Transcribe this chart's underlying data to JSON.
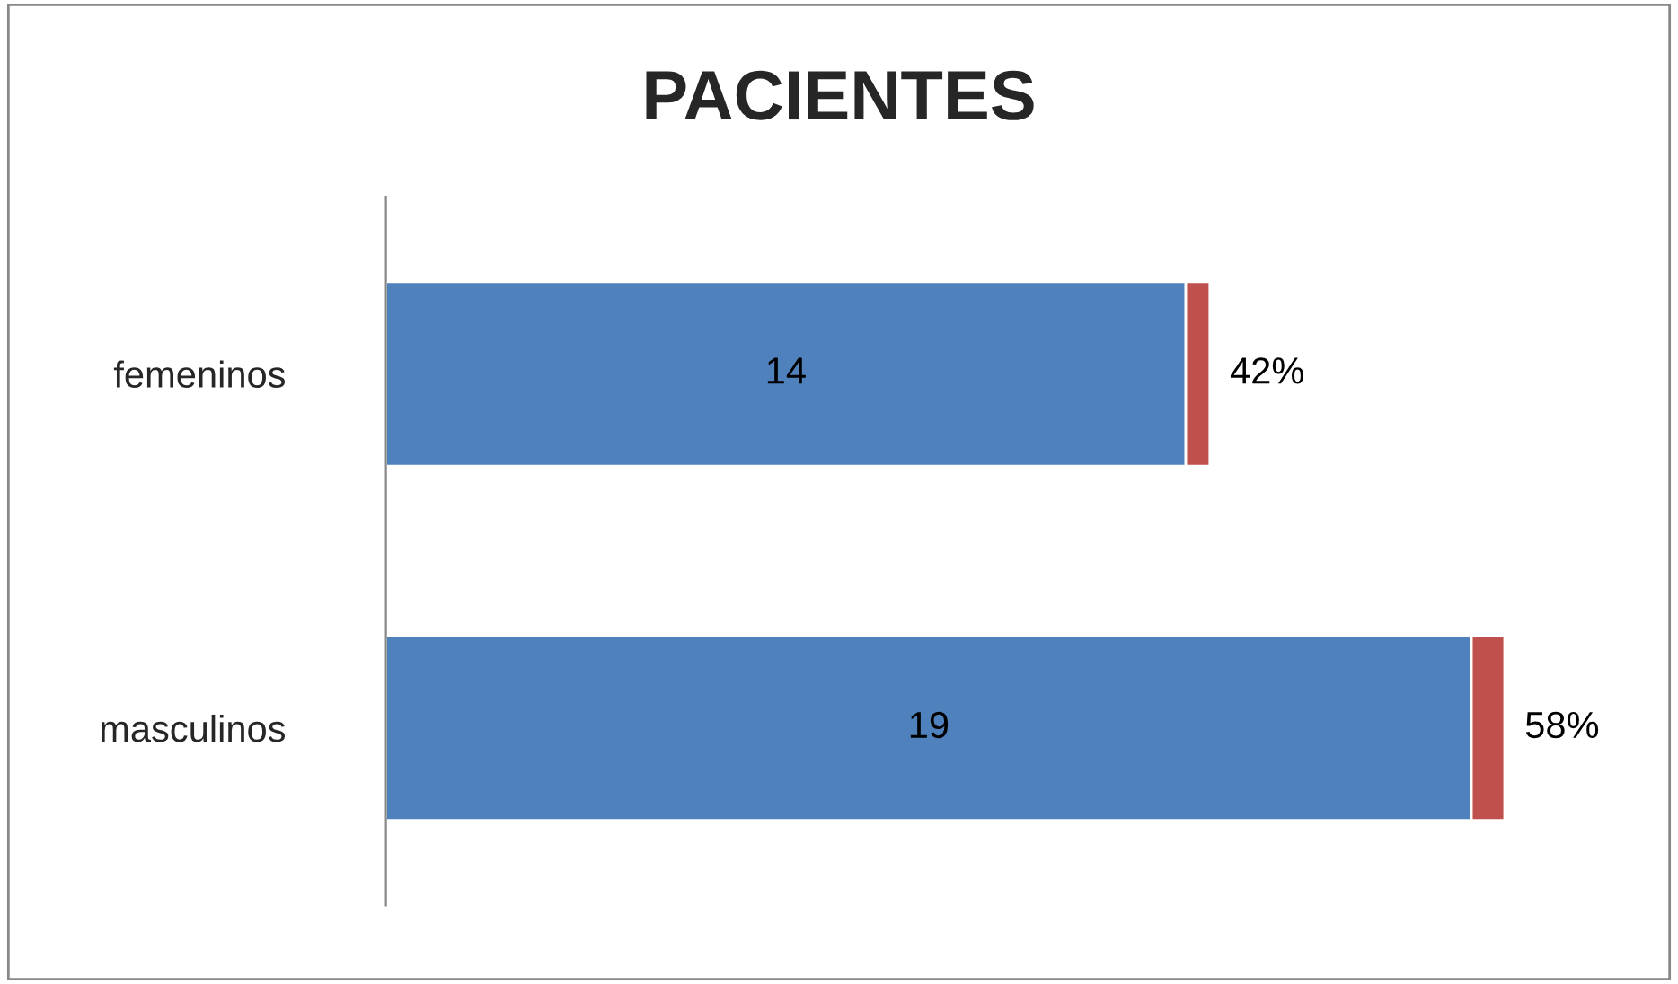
{
  "chart_data": {
    "type": "bar",
    "title": "PACIENTES",
    "orientation": "horizontal",
    "stacked": true,
    "categories": [
      "femeninos",
      "masculinos"
    ],
    "series": [
      {
        "color": "#4f81bd",
        "values": [
          14,
          19
        ],
        "value_labels": [
          "14",
          "19"
        ]
      },
      {
        "color": "#c0504d",
        "values": [
          0.42,
          0.58
        ],
        "value_labels": [
          "42%",
          "58%"
        ]
      }
    ],
    "grid": false,
    "legend": false,
    "tick_labels": "y"
  }
}
